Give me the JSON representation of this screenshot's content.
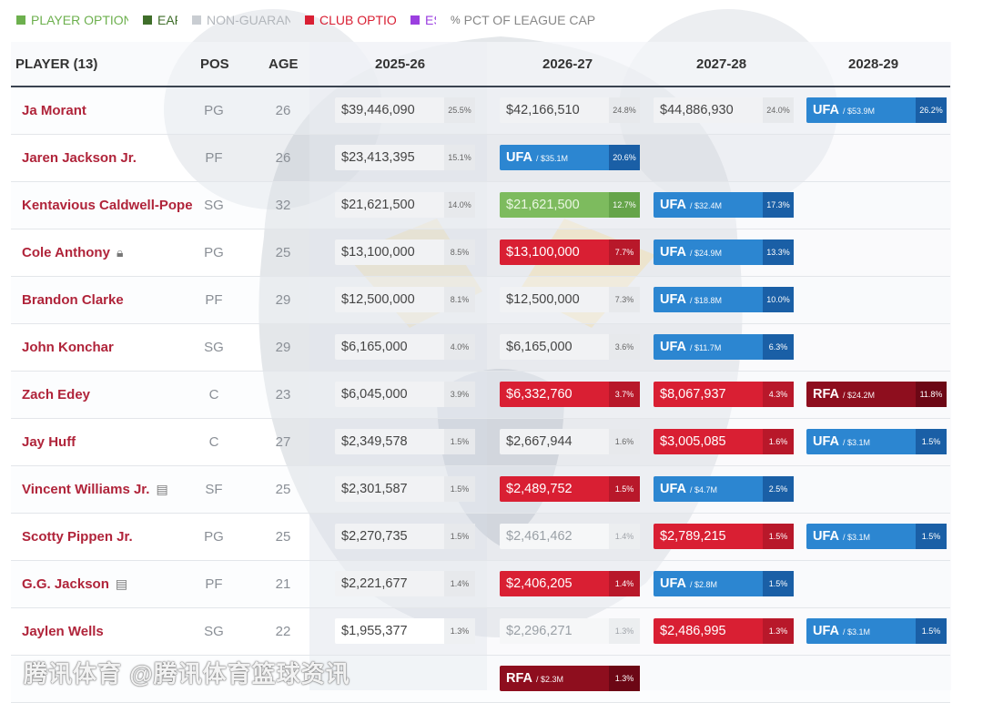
{
  "legend": [
    {
      "label": "PLAYER OPTION",
      "color": "#6db04e",
      "text_color": "#6db04e"
    },
    {
      "label": "EARLY",
      "color": "#3f6e2a",
      "text_color": "#3f6e2a"
    },
    {
      "label": "NON-GUARANTEED",
      "color": "#c9cdd2",
      "text_color": "#b3b7bc"
    },
    {
      "label": "CLUB OPTION",
      "color": "#d91f33",
      "text_color": "#d91f33"
    },
    {
      "label": "ESTIMATED",
      "color": "#9b3fe0",
      "text_color": "#9b3fe0"
    },
    {
      "label": "PCT OF LEAGUE CAP",
      "color": "",
      "text_color": "#888888",
      "symbol": "%"
    }
  ],
  "header": {
    "player": "PLAYER (13)",
    "pos": "POS",
    "age": "AGE",
    "seasons": [
      "2025-26",
      "2026-27",
      "2027-28",
      "2028-29"
    ]
  },
  "rows": [
    {
      "name": "Ja Morant",
      "icon": "",
      "pos": "PG",
      "age": "26",
      "cells": [
        {
          "type": "gtd",
          "amount": "$39,446,090",
          "pct": "25.5%"
        },
        {
          "type": "gtd",
          "amount": "$42,166,510",
          "pct": "24.8%"
        },
        {
          "type": "gtd",
          "amount": "$44,886,930",
          "pct": "24.0%"
        },
        {
          "type": "ufa",
          "label": "UFA",
          "sub": "/ $53.9M",
          "pct": "26.2%"
        }
      ]
    },
    {
      "name": "Jaren Jackson Jr.",
      "icon": "",
      "pos": "PF",
      "age": "26",
      "cells": [
        {
          "type": "gtd",
          "amount": "$23,413,395",
          "pct": "15.1%"
        },
        {
          "type": "ufa",
          "label": "UFA",
          "sub": "/ $35.1M",
          "pct": "20.6%"
        }
      ]
    },
    {
      "name": "Kentavious Caldwell-Pope",
      "icon": "",
      "pos": "SG",
      "age": "32",
      "cells": [
        {
          "type": "gtd",
          "amount": "$21,621,500",
          "pct": "14.0%"
        },
        {
          "type": "player",
          "amount": "$21,621,500",
          "pct": "12.7%"
        },
        {
          "type": "ufa",
          "label": "UFA",
          "sub": "/ $32.4M",
          "pct": "17.3%"
        }
      ]
    },
    {
      "name": "Cole Anthony",
      "icon": "lock-icon",
      "pos": "PG",
      "age": "25",
      "cells": [
        {
          "type": "gtd",
          "amount": "$13,100,000",
          "pct": "8.5%"
        },
        {
          "type": "club",
          "amount": "$13,100,000",
          "pct": "7.7%"
        },
        {
          "type": "ufa",
          "label": "UFA",
          "sub": "/ $24.9M",
          "pct": "13.3%"
        }
      ]
    },
    {
      "name": "Brandon Clarke",
      "icon": "",
      "pos": "PF",
      "age": "29",
      "cells": [
        {
          "type": "gtd",
          "amount": "$12,500,000",
          "pct": "8.1%"
        },
        {
          "type": "gtd",
          "amount": "$12,500,000",
          "pct": "7.3%"
        },
        {
          "type": "ufa",
          "label": "UFA",
          "sub": "/ $18.8M",
          "pct": "10.0%"
        }
      ]
    },
    {
      "name": "John Konchar",
      "icon": "",
      "pos": "SG",
      "age": "29",
      "cells": [
        {
          "type": "gtd",
          "amount": "$6,165,000",
          "pct": "4.0%"
        },
        {
          "type": "gtd",
          "amount": "$6,165,000",
          "pct": "3.6%"
        },
        {
          "type": "ufa",
          "label": "UFA",
          "sub": "/ $11.7M",
          "pct": "6.3%"
        }
      ]
    },
    {
      "name": "Zach Edey",
      "icon": "",
      "pos": "C",
      "age": "23",
      "cells": [
        {
          "type": "gtd",
          "amount": "$6,045,000",
          "pct": "3.9%"
        },
        {
          "type": "club",
          "amount": "$6,332,760",
          "pct": "3.7%"
        },
        {
          "type": "club",
          "amount": "$8,067,937",
          "pct": "4.3%"
        },
        {
          "type": "rfa",
          "label": "RFA",
          "sub": "/ $24.2M",
          "pct": "11.8%"
        }
      ]
    },
    {
      "name": "Jay Huff",
      "icon": "",
      "pos": "C",
      "age": "27",
      "cells": [
        {
          "type": "gtd",
          "amount": "$2,349,578",
          "pct": "1.5%"
        },
        {
          "type": "gtd",
          "amount": "$2,667,944",
          "pct": "1.6%"
        },
        {
          "type": "club",
          "amount": "$3,005,085",
          "pct": "1.6%"
        },
        {
          "type": "ufa",
          "label": "UFA",
          "sub": "/ $3.1M",
          "pct": "1.5%"
        }
      ]
    },
    {
      "name": "Vincent Williams Jr.",
      "icon": "document-icon",
      "pos": "SF",
      "age": "25",
      "cells": [
        {
          "type": "gtd",
          "amount": "$2,301,587",
          "pct": "1.5%"
        },
        {
          "type": "club",
          "amount": "$2,489,752",
          "pct": "1.5%"
        },
        {
          "type": "ufa",
          "label": "UFA",
          "sub": "/ $4.7M",
          "pct": "2.5%"
        }
      ]
    },
    {
      "name": "Scotty Pippen Jr.",
      "icon": "",
      "pos": "PG",
      "age": "25",
      "cells": [
        {
          "type": "gtd",
          "amount": "$2,270,735",
          "pct": "1.5%"
        },
        {
          "type": "ngtd",
          "amount": "$2,461,462",
          "pct": "1.4%"
        },
        {
          "type": "club",
          "amount": "$2,789,215",
          "pct": "1.5%"
        },
        {
          "type": "ufa",
          "label": "UFA",
          "sub": "/ $3.1M",
          "pct": "1.5%"
        }
      ]
    },
    {
      "name": "G.G. Jackson",
      "icon": "document-icon",
      "pos": "PF",
      "age": "21",
      "cells": [
        {
          "type": "gtd",
          "amount": "$2,221,677",
          "pct": "1.4%"
        },
        {
          "type": "club",
          "amount": "$2,406,205",
          "pct": "1.4%"
        },
        {
          "type": "ufa",
          "label": "UFA",
          "sub": "/ $2.8M",
          "pct": "1.5%"
        }
      ]
    },
    {
      "name": "Jaylen Wells",
      "icon": "",
      "pos": "SG",
      "age": "22",
      "cells": [
        {
          "type": "white",
          "amount": "$1,955,377",
          "pct": "1.3%"
        },
        {
          "type": "ngtd",
          "amount": "$2,296,271",
          "pct": "1.3%"
        },
        {
          "type": "club",
          "amount": "$2,486,995",
          "pct": "1.3%"
        },
        {
          "type": "ufa",
          "label": "UFA",
          "sub": "/ $3.1M",
          "pct": "1.5%"
        }
      ]
    },
    {
      "name": "",
      "icon": "",
      "pos": "",
      "age": "",
      "cells": [
        {
          "type": "empty"
        },
        {
          "type": "rfa",
          "label": "RFA",
          "sub": "/ $2.3M",
          "pct": "1.3%"
        }
      ]
    }
  ],
  "watermark": "腾讯体育 @腾讯体育篮球资讯"
}
